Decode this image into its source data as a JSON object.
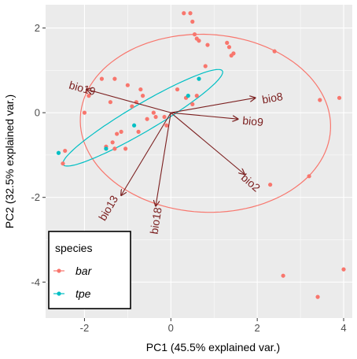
{
  "chart_data": {
    "type": "scatter",
    "title": "",
    "xlabel": "PC1 (45.5% explained var.)",
    "ylabel": "PC2 (32.5% explained var.)",
    "xlim": [
      -2.9,
      4.2
    ],
    "ylim": [
      -4.85,
      2.55
    ],
    "x_ticks": [
      -2,
      0,
      2,
      4
    ],
    "y_ticks": [
      -4,
      -2,
      0,
      2
    ],
    "x_tick_labels": [
      "-2",
      "0",
      "2",
      "4"
    ],
    "y_tick_labels": [
      "-4",
      "-2",
      "0",
      "2"
    ],
    "grid": true,
    "legend": {
      "title": "species",
      "position": "bottom-left",
      "entries": [
        {
          "label": "bar",
          "color": "#F8766D"
        },
        {
          "label": "tpe",
          "color": "#00BFC4"
        }
      ]
    },
    "series": [
      {
        "name": "bar",
        "color": "#F8766D",
        "points": [
          [
            0.3,
            2.35
          ],
          [
            0.45,
            2.35
          ],
          [
            0.5,
            2.15
          ],
          [
            0.55,
            1.85
          ],
          [
            0.6,
            1.75
          ],
          [
            0.65,
            1.7
          ],
          [
            0.85,
            1.6
          ],
          [
            1.3,
            1.65
          ],
          [
            1.35,
            1.55
          ],
          [
            0.8,
            1.1
          ],
          [
            1.4,
            1.35
          ],
          [
            1.45,
            1.4
          ],
          [
            2.4,
            1.45
          ],
          [
            3.45,
            0.3
          ],
          [
            3.9,
            0.35
          ],
          [
            -1.6,
            0.8
          ],
          [
            -1.3,
            0.8
          ],
          [
            -1.0,
            0.65
          ],
          [
            -1.9,
            0.4
          ],
          [
            -2.0,
            0.0
          ],
          [
            -1.4,
            0.25
          ],
          [
            -0.9,
            0.15
          ],
          [
            -0.8,
            0.25
          ],
          [
            -0.7,
            0.55
          ],
          [
            -0.65,
            0.4
          ],
          [
            0.15,
            0.55
          ],
          [
            0.35,
            0.35
          ],
          [
            -0.15,
            -0.1
          ],
          [
            0.5,
            0.2
          ],
          [
            0.6,
            0.4
          ],
          [
            -0.4,
            0.0
          ],
          [
            -0.55,
            -0.15
          ],
          [
            -0.75,
            -0.45
          ],
          [
            -1.15,
            -0.45
          ],
          [
            -1.25,
            -0.5
          ],
          [
            -1.35,
            -0.7
          ],
          [
            -1.5,
            -0.8
          ],
          [
            -1.05,
            -0.85
          ],
          [
            -1.3,
            -0.85
          ],
          [
            -0.35,
            -0.1
          ],
          [
            -0.1,
            -0.3
          ],
          [
            -2.45,
            -0.9
          ],
          [
            -2.5,
            -1.2
          ],
          [
            2.3,
            -1.7
          ],
          [
            2.6,
            -3.85
          ],
          [
            3.2,
            -1.5
          ],
          [
            3.4,
            -4.35
          ],
          [
            4.0,
            -3.7
          ]
        ]
      },
      {
        "name": "tpe",
        "color": "#00BFC4",
        "points": [
          [
            0.65,
            0.8
          ],
          [
            0.4,
            0.4
          ],
          [
            -0.85,
            -0.3
          ],
          [
            -1.5,
            -0.85
          ],
          [
            -2.6,
            -0.95
          ]
        ]
      }
    ],
    "ellipses": [
      {
        "series": "bar",
        "color": "#F8766D",
        "center": [
          0.8,
          -0.25
        ],
        "rx": 2.9,
        "ry": 2.1,
        "angle_deg": -3
      },
      {
        "series": "tpe",
        "color": "#00BFC4",
        "center": [
          -0.65,
          -0.12
        ],
        "rx": 2.15,
        "ry": 0.32,
        "angle_deg": 31
      }
    ],
    "arrows": {
      "color": "#7b1f1f",
      "origin": [
        0.0,
        0.0
      ],
      "vectors": [
        {
          "label": "bio19",
          "end": [
            -1.95,
            0.55
          ],
          "label_pos": [
            -2.05,
            0.58
          ]
        },
        {
          "label": "bio8",
          "end": [
            1.95,
            0.35
          ],
          "label_pos": [
            2.35,
            0.35
          ]
        },
        {
          "label": "bio9",
          "end": [
            1.55,
            -0.15
          ],
          "label_pos": [
            1.9,
            -0.2
          ]
        },
        {
          "label": "bio2",
          "end": [
            1.7,
            -1.45
          ],
          "label_pos": [
            1.85,
            -1.65
          ]
        },
        {
          "label": "bio13",
          "end": [
            -1.15,
            -1.95
          ],
          "label_pos": [
            -1.45,
            -2.25
          ]
        },
        {
          "label": "bio18",
          "end": [
            -0.35,
            -2.2
          ],
          "label_pos": [
            -0.35,
            -2.55
          ]
        }
      ]
    }
  }
}
